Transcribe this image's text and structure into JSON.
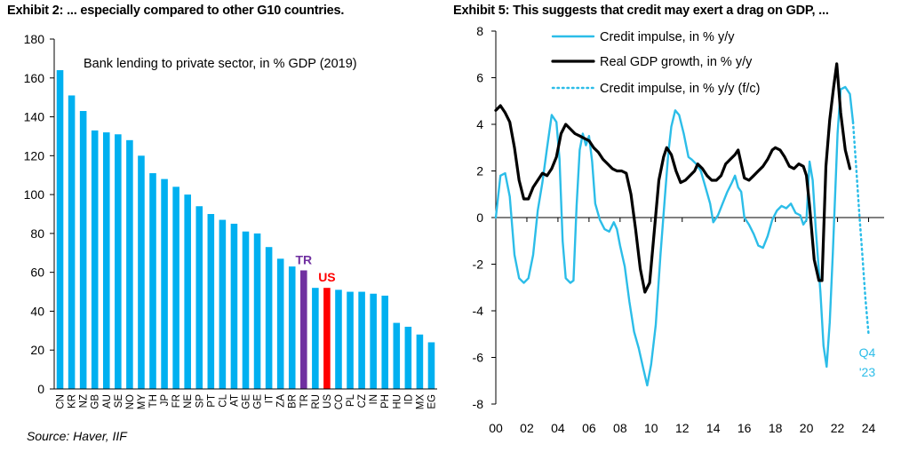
{
  "exhibit_left": {
    "title": "Exhibit 2: ... especially compared to other G10 countries.",
    "source": "Source: Haver, IIF"
  },
  "exhibit_right": {
    "title": "Exhibit 5: This suggests that credit may exert a drag on GDP, ..."
  },
  "colors": {
    "bar": "#00b0f0",
    "tr_bar": "#7030a0",
    "us_bar": "#ff0000",
    "credit_line": "#2cbde8",
    "gdp_line": "#000000"
  },
  "chart_data": [
    {
      "type": "bar",
      "annotation": "Bank lending to private sector, in % GDP (2019)",
      "categories": [
        "CN",
        "KR",
        "NZ",
        "GB",
        "AU",
        "SE",
        "NO",
        "MY",
        "TH",
        "JP",
        "FR",
        "NE",
        "SP",
        "PT",
        "CL",
        "AT",
        "GE",
        "GE",
        "IT",
        "ZA",
        "BR",
        "TR",
        "RU",
        "US",
        "CO",
        "PL",
        "CZ",
        "IN",
        "PH",
        "HU",
        "ID",
        "MX",
        "EG"
      ],
      "values": [
        164,
        151,
        143,
        133,
        132,
        131,
        128,
        120,
        111,
        108,
        104,
        100,
        94,
        90,
        87,
        85,
        81,
        80,
        73,
        67,
        63,
        61,
        52,
        52,
        51,
        50,
        50,
        49,
        48,
        34,
        32,
        28,
        24
      ],
      "highlight_labels": [
        {
          "label": "TR",
          "category_index": 21,
          "color": "#7030a0"
        },
        {
          "label": "US",
          "category_index": 23,
          "color": "#ff0000"
        }
      ],
      "ylim": [
        0,
        180
      ],
      "yticks": [
        0,
        20,
        40,
        60,
        80,
        100,
        120,
        140,
        160,
        180
      ],
      "grid": false
    },
    {
      "type": "line",
      "legend_position": "top-left",
      "ylim": [
        -8,
        8
      ],
      "yticks": [
        -8,
        -6,
        -4,
        -2,
        0,
        2,
        4,
        6,
        8
      ],
      "xlim": [
        2000,
        2025
      ],
      "xticks": [
        2000,
        2002,
        2004,
        2006,
        2008,
        2010,
        2012,
        2014,
        2016,
        2018,
        2020,
        2022,
        2024
      ],
      "xtick_labels": [
        "00",
        "02",
        "04",
        "06",
        "08",
        "10",
        "12",
        "14",
        "16",
        "18",
        "20",
        "22",
        "24"
      ],
      "annotation_lines": [
        "Q4",
        "'23"
      ],
      "series": [
        {
          "name": "Credit impulse, in % y/y",
          "style": "solid",
          "color": "#2cbde8",
          "points": [
            [
              2000.0,
              0.0
            ],
            [
              2000.3,
              1.8
            ],
            [
              2000.6,
              1.9
            ],
            [
              2000.9,
              0.9
            ],
            [
              2001.2,
              -1.6
            ],
            [
              2001.5,
              -2.6
            ],
            [
              2001.8,
              -2.8
            ],
            [
              2002.1,
              -2.6
            ],
            [
              2002.4,
              -1.6
            ],
            [
              2002.7,
              0.3
            ],
            [
              2003.0,
              1.5
            ],
            [
              2003.3,
              3.0
            ],
            [
              2003.6,
              4.4
            ],
            [
              2003.9,
              4.1
            ],
            [
              2004.1,
              2.5
            ],
            [
              2004.3,
              -1.0
            ],
            [
              2004.5,
              -2.6
            ],
            [
              2004.8,
              -2.8
            ],
            [
              2005.0,
              -2.7
            ],
            [
              2005.2,
              0.5
            ],
            [
              2005.4,
              2.9
            ],
            [
              2005.6,
              3.6
            ],
            [
              2005.8,
              3.1
            ],
            [
              2006.0,
              3.5
            ],
            [
              2006.2,
              2.4
            ],
            [
              2006.4,
              0.6
            ],
            [
              2006.7,
              -0.1
            ],
            [
              2007.0,
              -0.5
            ],
            [
              2007.3,
              -0.6
            ],
            [
              2007.6,
              -0.2
            ],
            [
              2007.8,
              -0.5
            ],
            [
              2008.0,
              -1.2
            ],
            [
              2008.3,
              -2.1
            ],
            [
              2008.6,
              -3.6
            ],
            [
              2008.9,
              -4.9
            ],
            [
              2009.2,
              -5.6
            ],
            [
              2009.5,
              -6.5
            ],
            [
              2009.75,
              -7.2
            ],
            [
              2010.0,
              -6.3
            ],
            [
              2010.3,
              -4.6
            ],
            [
              2010.6,
              -1.6
            ],
            [
              2010.9,
              1.0
            ],
            [
              2011.1,
              2.7
            ],
            [
              2011.3,
              3.9
            ],
            [
              2011.55,
              4.6
            ],
            [
              2011.8,
              4.4
            ],
            [
              2012.1,
              3.6
            ],
            [
              2012.4,
              2.6
            ],
            [
              2012.6,
              2.5
            ],
            [
              2012.9,
              2.3
            ],
            [
              2013.2,
              2.0
            ],
            [
              2013.5,
              1.3
            ],
            [
              2013.8,
              0.6
            ],
            [
              2014.0,
              -0.2
            ],
            [
              2014.3,
              0.1
            ],
            [
              2014.6,
              0.6
            ],
            [
              2014.9,
              1.1
            ],
            [
              2015.2,
              1.5
            ],
            [
              2015.4,
              1.8
            ],
            [
              2015.6,
              1.3
            ],
            [
              2015.8,
              1.1
            ],
            [
              2016.0,
              0.0
            ],
            [
              2016.3,
              -0.3
            ],
            [
              2016.6,
              -0.7
            ],
            [
              2016.9,
              -1.2
            ],
            [
              2017.2,
              -1.3
            ],
            [
              2017.5,
              -0.8
            ],
            [
              2017.8,
              -0.1
            ],
            [
              2018.1,
              0.3
            ],
            [
              2018.4,
              0.5
            ],
            [
              2018.7,
              0.4
            ],
            [
              2019.0,
              0.6
            ],
            [
              2019.3,
              0.2
            ],
            [
              2019.6,
              0.1
            ],
            [
              2019.8,
              -0.3
            ],
            [
              2020.0,
              -0.1
            ],
            [
              2020.2,
              2.4
            ],
            [
              2020.4,
              1.6
            ],
            [
              2020.6,
              -0.5
            ],
            [
              2020.9,
              -3.2
            ],
            [
              2021.1,
              -5.5
            ],
            [
              2021.3,
              -6.4
            ],
            [
              2021.5,
              -4.5
            ],
            [
              2021.7,
              -1.5
            ],
            [
              2022.0,
              3.6
            ],
            [
              2022.2,
              5.5
            ],
            [
              2022.5,
              5.6
            ],
            [
              2022.8,
              5.3
            ],
            [
              2023.0,
              4.1
            ]
          ]
        },
        {
          "name": "Real GDP growth, in % y/y",
          "style": "solid",
          "color": "#000000",
          "points": [
            [
              2000.0,
              4.6
            ],
            [
              2000.3,
              4.8
            ],
            [
              2000.6,
              4.5
            ],
            [
              2000.9,
              4.1
            ],
            [
              2001.2,
              3.0
            ],
            [
              2001.5,
              1.6
            ],
            [
              2001.8,
              0.8
            ],
            [
              2002.1,
              0.8
            ],
            [
              2002.4,
              1.3
            ],
            [
              2002.7,
              1.6
            ],
            [
              2003.0,
              1.9
            ],
            [
              2003.3,
              1.8
            ],
            [
              2003.6,
              2.1
            ],
            [
              2003.9,
              2.6
            ],
            [
              2004.2,
              3.6
            ],
            [
              2004.5,
              4.0
            ],
            [
              2004.8,
              3.8
            ],
            [
              2005.1,
              3.6
            ],
            [
              2005.4,
              3.5
            ],
            [
              2005.7,
              3.4
            ],
            [
              2006.0,
              3.3
            ],
            [
              2006.3,
              3.0
            ],
            [
              2006.6,
              2.8
            ],
            [
              2006.9,
              2.5
            ],
            [
              2007.2,
              2.3
            ],
            [
              2007.5,
              2.1
            ],
            [
              2007.8,
              2.0
            ],
            [
              2008.1,
              2.0
            ],
            [
              2008.4,
              1.9
            ],
            [
              2008.7,
              1.0
            ],
            [
              2009.0,
              -0.5
            ],
            [
              2009.3,
              -2.2
            ],
            [
              2009.6,
              -3.2
            ],
            [
              2009.9,
              -2.8
            ],
            [
              2010.2,
              -0.6
            ],
            [
              2010.5,
              1.6
            ],
            [
              2010.8,
              2.6
            ],
            [
              2011.0,
              3.0
            ],
            [
              2011.3,
              2.7
            ],
            [
              2011.6,
              2.0
            ],
            [
              2011.9,
              1.5
            ],
            [
              2012.2,
              1.6
            ],
            [
              2012.5,
              1.8
            ],
            [
              2012.8,
              2.0
            ],
            [
              2013.0,
              2.3
            ],
            [
              2013.3,
              2.1
            ],
            [
              2013.6,
              1.8
            ],
            [
              2013.9,
              1.6
            ],
            [
              2014.2,
              1.6
            ],
            [
              2014.5,
              1.8
            ],
            [
              2014.8,
              2.3
            ],
            [
              2015.1,
              2.5
            ],
            [
              2015.4,
              2.7
            ],
            [
              2015.6,
              2.9
            ],
            [
              2015.8,
              2.3
            ],
            [
              2016.0,
              1.7
            ],
            [
              2016.3,
              1.6
            ],
            [
              2016.6,
              1.8
            ],
            [
              2016.9,
              2.0
            ],
            [
              2017.2,
              2.2
            ],
            [
              2017.5,
              2.5
            ],
            [
              2017.8,
              2.9
            ],
            [
              2018.0,
              3.0
            ],
            [
              2018.3,
              2.9
            ],
            [
              2018.6,
              2.6
            ],
            [
              2018.9,
              2.2
            ],
            [
              2019.2,
              2.1
            ],
            [
              2019.5,
              2.3
            ],
            [
              2019.8,
              2.2
            ],
            [
              2020.0,
              1.8
            ],
            [
              2020.2,
              0.5
            ],
            [
              2020.5,
              -1.8
            ],
            [
              2020.8,
              -2.7
            ],
            [
              2021.0,
              -2.7
            ],
            [
              2021.25,
              2.2
            ],
            [
              2021.5,
              4.2
            ],
            [
              2021.75,
              5.6
            ],
            [
              2021.95,
              6.6
            ],
            [
              2022.2,
              4.5
            ],
            [
              2022.5,
              2.9
            ],
            [
              2022.8,
              2.1
            ]
          ]
        },
        {
          "name": "Credit impulse, in % y/y (f/c)",
          "style": "dotted",
          "color": "#2cbde8",
          "points": [
            [
              2023.0,
              4.1
            ],
            [
              2023.2,
              2.2
            ],
            [
              2023.4,
              0.2
            ],
            [
              2023.6,
              -1.6
            ],
            [
              2023.8,
              -3.5
            ],
            [
              2024.0,
              -5.0
            ]
          ]
        }
      ]
    }
  ]
}
